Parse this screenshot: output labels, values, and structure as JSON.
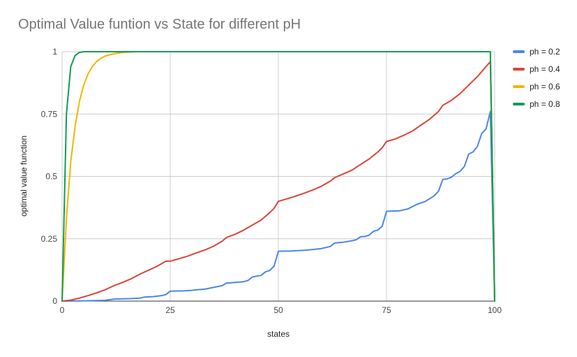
{
  "chart_data": {
    "type": "line",
    "title": "Optimal Value funtion vs State for different pH",
    "xlabel": "states",
    "ylabel": "optimal value function",
    "xlim": [
      0,
      100
    ],
    "ylim": [
      0,
      1
    ],
    "x_ticks": [
      "0",
      "25",
      "50",
      "75",
      "100"
    ],
    "y_ticks": [
      "0",
      "0.25",
      "0.5",
      "0.75",
      "1"
    ],
    "grid": "on",
    "legend_position": "right",
    "series": [
      {
        "name": "ph = 0.2",
        "color": "#4a86e8",
        "points": [
          [
            0,
            0
          ],
          [
            5,
            0.001
          ],
          [
            10,
            0.003
          ],
          [
            12,
            0.008
          ],
          [
            16,
            0.01
          ],
          [
            18,
            0.012
          ],
          [
            19,
            0.016
          ],
          [
            21,
            0.018
          ],
          [
            23,
            0.022
          ],
          [
            24,
            0.026
          ],
          [
            25,
            0.04
          ],
          [
            28,
            0.041
          ],
          [
            30,
            0.043
          ],
          [
            31,
            0.045
          ],
          [
            33,
            0.048
          ],
          [
            35,
            0.055
          ],
          [
            37,
            0.062
          ],
          [
            38,
            0.072
          ],
          [
            40,
            0.075
          ],
          [
            42,
            0.078
          ],
          [
            43,
            0.083
          ],
          [
            44,
            0.097
          ],
          [
            46,
            0.103
          ],
          [
            47,
            0.117
          ],
          [
            48,
            0.123
          ],
          [
            49,
            0.14
          ],
          [
            50,
            0.2
          ],
          [
            53,
            0.201
          ],
          [
            56,
            0.204
          ],
          [
            58,
            0.207
          ],
          [
            60,
            0.211
          ],
          [
            62,
            0.219
          ],
          [
            63,
            0.233
          ],
          [
            65,
            0.236
          ],
          [
            67,
            0.242
          ],
          [
            68,
            0.246
          ],
          [
            69,
            0.258
          ],
          [
            70,
            0.259
          ],
          [
            71,
            0.265
          ],
          [
            72,
            0.28
          ],
          [
            73,
            0.285
          ],
          [
            74,
            0.3
          ],
          [
            75,
            0.36
          ],
          [
            78,
            0.362
          ],
          [
            80,
            0.37
          ],
          [
            82,
            0.388
          ],
          [
            84,
            0.4
          ],
          [
            86,
            0.422
          ],
          [
            87,
            0.44
          ],
          [
            88,
            0.488
          ],
          [
            89,
            0.49
          ],
          [
            90,
            0.497
          ],
          [
            91,
            0.511
          ],
          [
            92,
            0.52
          ],
          [
            93,
            0.54
          ],
          [
            94,
            0.59
          ],
          [
            95,
            0.598
          ],
          [
            96,
            0.62
          ],
          [
            97,
            0.672
          ],
          [
            98,
            0.69
          ],
          [
            99,
            0.76
          ],
          [
            100,
            0
          ]
        ]
      },
      {
        "name": "ph = 0.4",
        "color": "#db4437",
        "points": [
          [
            0,
            0
          ],
          [
            2,
            0.004
          ],
          [
            4,
            0.012
          ],
          [
            6,
            0.022
          ],
          [
            8,
            0.033
          ],
          [
            10,
            0.046
          ],
          [
            12,
            0.062
          ],
          [
            14,
            0.075
          ],
          [
            16,
            0.09
          ],
          [
            18,
            0.108
          ],
          [
            20,
            0.124
          ],
          [
            22,
            0.14
          ],
          [
            24,
            0.16
          ],
          [
            25,
            0.16
          ],
          [
            27,
            0.17
          ],
          [
            29,
            0.18
          ],
          [
            31,
            0.193
          ],
          [
            33,
            0.205
          ],
          [
            35,
            0.22
          ],
          [
            37,
            0.24
          ],
          [
            38,
            0.255
          ],
          [
            40,
            0.268
          ],
          [
            42,
            0.285
          ],
          [
            44,
            0.305
          ],
          [
            46,
            0.325
          ],
          [
            48,
            0.355
          ],
          [
            49,
            0.372
          ],
          [
            50,
            0.4
          ],
          [
            52,
            0.41
          ],
          [
            54,
            0.421
          ],
          [
            56,
            0.433
          ],
          [
            58,
            0.446
          ],
          [
            60,
            0.461
          ],
          [
            62,
            0.481
          ],
          [
            63,
            0.495
          ],
          [
            65,
            0.51
          ],
          [
            67,
            0.525
          ],
          [
            69,
            0.548
          ],
          [
            71,
            0.57
          ],
          [
            73,
            0.598
          ],
          [
            74,
            0.615
          ],
          [
            75,
            0.64
          ],
          [
            77,
            0.65
          ],
          [
            79,
            0.665
          ],
          [
            81,
            0.682
          ],
          [
            83,
            0.706
          ],
          [
            85,
            0.73
          ],
          [
            87,
            0.76
          ],
          [
            88,
            0.785
          ],
          [
            90,
            0.805
          ],
          [
            92,
            0.832
          ],
          [
            94,
            0.866
          ],
          [
            96,
            0.9
          ],
          [
            98,
            0.94
          ],
          [
            99,
            0.96
          ],
          [
            100,
            0
          ]
        ]
      },
      {
        "name": "ph = 0.6",
        "color": "#f4b400",
        "points": [
          [
            0,
            0
          ],
          [
            1,
            0.33
          ],
          [
            2,
            0.56
          ],
          [
            3,
            0.7
          ],
          [
            4,
            0.8
          ],
          [
            5,
            0.866
          ],
          [
            6,
            0.911
          ],
          [
            7,
            0.94
          ],
          [
            8,
            0.961
          ],
          [
            9,
            0.974
          ],
          [
            10,
            0.983
          ],
          [
            12,
            0.992
          ],
          [
            14,
            0.997
          ],
          [
            17,
            1
          ],
          [
            99,
            1
          ],
          [
            100,
            0
          ]
        ]
      },
      {
        "name": "ph = 0.8",
        "color": "#0f9d58",
        "points": [
          [
            0,
            0
          ],
          [
            1,
            0.75
          ],
          [
            2,
            0.94
          ],
          [
            3,
            0.985
          ],
          [
            4,
            0.997
          ],
          [
            5,
            1
          ],
          [
            99,
            1
          ],
          [
            100,
            0
          ]
        ]
      }
    ]
  }
}
